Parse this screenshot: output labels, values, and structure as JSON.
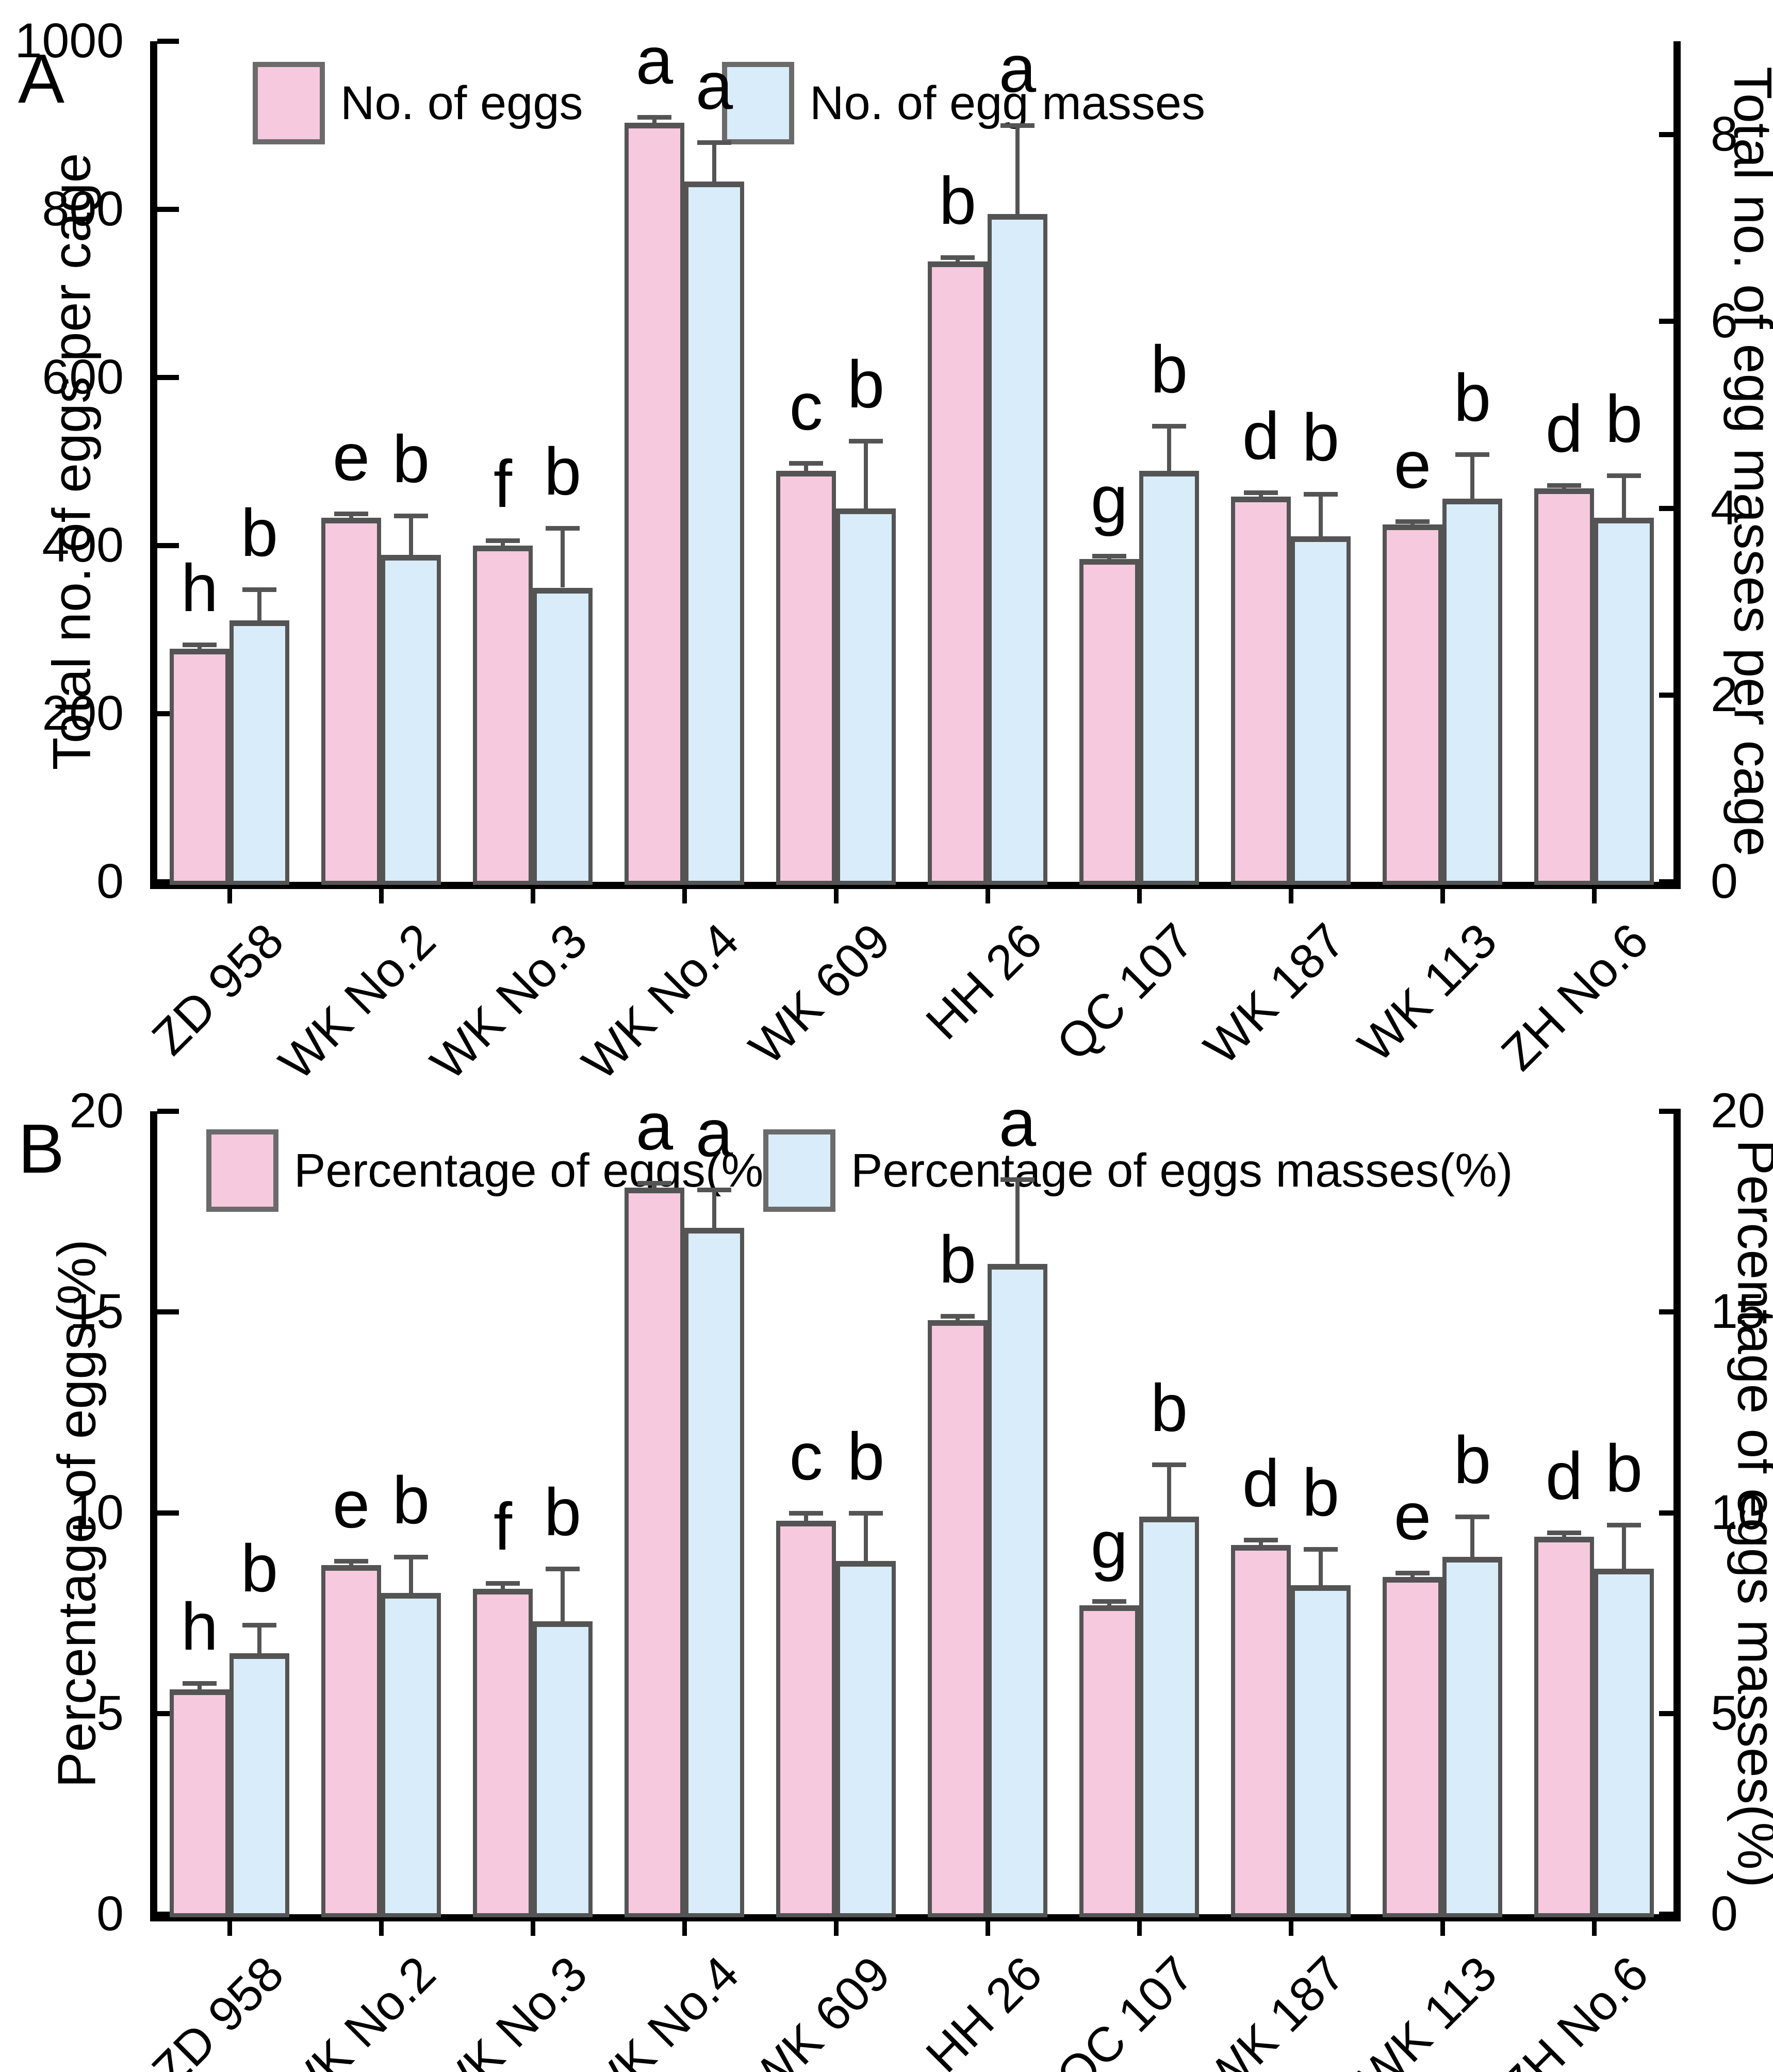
{
  "figure_title": "",
  "colors": {
    "eggs_fill": "#f7c9de",
    "egg_masses_fill": "#d9ecfa",
    "bar_edge": "#545454",
    "error_bar": "#545454",
    "axis": "#000000",
    "background": "#ffffff"
  },
  "chart_data": [
    {
      "id": "A",
      "panel_label": "A",
      "type": "bar",
      "grid": false,
      "legend_position": "top",
      "legend": [
        "No. of eggs",
        "No. of egg masses"
      ],
      "categories": [
        "ZD 958",
        "WK No.2",
        "WK No.3",
        "WK No.4",
        "WK 609",
        "HH 26",
        "QC 107",
        "WK 187",
        "WK 113",
        "ZH No.6"
      ],
      "left_axis": {
        "label": "Total no. of eggs per cage",
        "ticks": [
          0,
          200,
          400,
          600,
          800,
          1000
        ],
        "range": [
          0,
          1000
        ]
      },
      "right_axis": {
        "label": "Total no. of egg masses per cage",
        "ticks": [
          0,
          2,
          4,
          6,
          8
        ],
        "range": [
          0,
          9
        ]
      },
      "series": [
        {
          "name": "No. of eggs",
          "axis": "left",
          "color": "#f7c9de",
          "values": [
            277,
            433,
            400,
            903,
            489,
            738,
            384,
            458,
            425,
            468
          ],
          "errors": [
            5,
            5,
            6,
            7,
            9,
            5,
            4,
            5,
            4,
            4
          ],
          "sig_letters": [
            "h",
            "e",
            "f",
            "a",
            "c",
            "b",
            "g",
            "d",
            "e",
            "d"
          ]
        },
        {
          "name": "No. of egg masses",
          "axis": "right",
          "color": "#d9ecfa",
          "values": [
            2.8,
            3.5,
            3.15,
            7.5,
            4.0,
            7.15,
            4.4,
            3.7,
            4.1,
            3.9
          ],
          "errors": [
            0.33,
            0.42,
            0.64,
            0.42,
            0.72,
            0.95,
            0.48,
            0.45,
            0.48,
            0.45
          ],
          "sig_letters": [
            "b",
            "b",
            "b",
            "a",
            "b",
            "a",
            "b",
            "b",
            "b",
            "b"
          ]
        }
      ]
    },
    {
      "id": "B",
      "panel_label": "B",
      "type": "bar",
      "grid": false,
      "legend_position": "top",
      "legend": [
        "Percentage of eggs(%)",
        "Percentage of eggs masses(%)"
      ],
      "categories": [
        "ZD 958",
        "WK No.2",
        "WK No.3",
        "WK No.4",
        "WK 609",
        "HH 26",
        "QC 107",
        "WK 187",
        "WK 113",
        "ZH No.6"
      ],
      "left_axis": {
        "label": "Percentage of eggs(%)",
        "ticks": [
          0,
          5,
          10,
          15,
          20
        ],
        "range": [
          0,
          20
        ]
      },
      "right_axis": {
        "label": "Percentage of eggs masses(%)",
        "ticks": [
          0,
          5,
          10,
          15,
          20
        ],
        "range": [
          0,
          20
        ]
      },
      "series": [
        {
          "name": "Percentage of eggs(%)",
          "axis": "left",
          "color": "#f7c9de",
          "values": [
            5.6,
            8.7,
            8.1,
            18.1,
            9.8,
            14.8,
            7.7,
            9.2,
            8.4,
            9.4
          ],
          "errors": [
            0.15,
            0.1,
            0.15,
            0.12,
            0.2,
            0.1,
            0.1,
            0.12,
            0.1,
            0.1
          ],
          "sig_letters": [
            "h",
            "e",
            "f",
            "a",
            "c",
            "b",
            "g",
            "d",
            "e",
            "d"
          ]
        },
        {
          "name": "Percentage of eggs masses(%)",
          "axis": "right",
          "color": "#d9ecfa",
          "values": [
            6.5,
            8.0,
            7.3,
            17.1,
            8.8,
            16.2,
            9.9,
            8.2,
            8.9,
            8.6
          ],
          "errors": [
            0.7,
            0.9,
            1.3,
            0.95,
            1.2,
            2.1,
            1.3,
            0.9,
            1.0,
            1.1
          ],
          "sig_letters": [
            "b",
            "b",
            "b",
            "a",
            "b",
            "a",
            "b",
            "b",
            "b",
            "b"
          ]
        }
      ]
    }
  ]
}
